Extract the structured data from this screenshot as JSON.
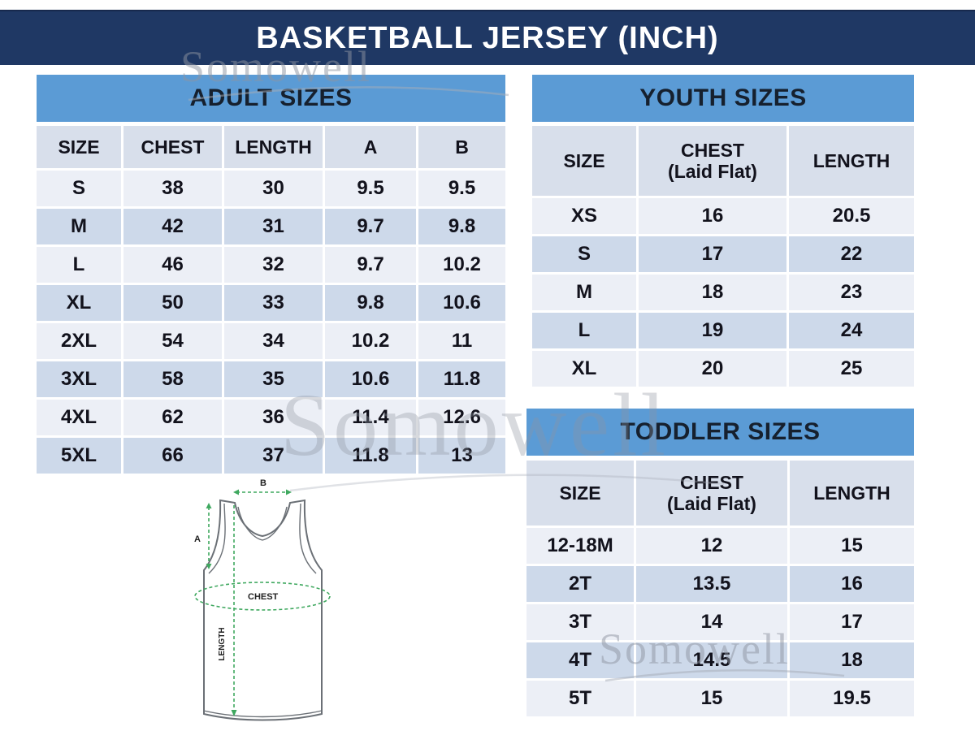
{
  "title": "BASKETBALL JERSEY (INCH)",
  "watermark": {
    "text": "Somowell"
  },
  "colors": {
    "top_banner_bg": "#1f3864",
    "top_banner_text": "#ffffff",
    "section_banner_bg": "#5b9bd5",
    "section_banner_text": "#16202e",
    "header_row_bg": "#d8dfeb",
    "row_light_bg": "#eceff6",
    "row_dark_bg": "#cdd9ea",
    "cell_text": "#12121c",
    "measure_green": "#3fa85f",
    "jersey_outline": "#6b7076",
    "watermark_gray": "#8f95a1"
  },
  "tables": {
    "adult": {
      "title": "ADULT SIZES",
      "columns": [
        "SIZE",
        "CHEST",
        "LENGTH",
        "A",
        "B"
      ],
      "rows": [
        [
          "S",
          "38",
          "30",
          "9.5",
          "9.5"
        ],
        [
          "M",
          "42",
          "31",
          "9.7",
          "9.8"
        ],
        [
          "L",
          "46",
          "32",
          "9.7",
          "10.2"
        ],
        [
          "XL",
          "50",
          "33",
          "9.8",
          "10.6"
        ],
        [
          "2XL",
          "54",
          "34",
          "10.2",
          "11"
        ],
        [
          "3XL",
          "58",
          "35",
          "10.6",
          "11.8"
        ],
        [
          "4XL",
          "62",
          "36",
          "11.4",
          "12.6"
        ],
        [
          "5XL",
          "66",
          "37",
          "11.8",
          "13"
        ]
      ]
    },
    "youth": {
      "title": "YOUTH SIZES",
      "columns": [
        "SIZE",
        "CHEST\n(Laid Flat)",
        "LENGTH"
      ],
      "rows": [
        [
          "XS",
          "16",
          "20.5"
        ],
        [
          "S",
          "17",
          "22"
        ],
        [
          "M",
          "18",
          "23"
        ],
        [
          "L",
          "19",
          "24"
        ],
        [
          "XL",
          "20",
          "25"
        ]
      ]
    },
    "toddler": {
      "title": "TODDLER SIZES",
      "columns": [
        "SIZE",
        "CHEST\n(Laid Flat)",
        "LENGTH"
      ],
      "rows": [
        [
          "12-18M",
          "12",
          "15"
        ],
        [
          "2T",
          "13.5",
          "16"
        ],
        [
          "3T",
          "14",
          "17"
        ],
        [
          "4T",
          "14.5",
          "18"
        ],
        [
          "5T",
          "15",
          "19.5"
        ]
      ]
    }
  },
  "diagram": {
    "a_label": "A",
    "b_label": "B",
    "chest_label": "CHEST",
    "length_label": "LENGTH"
  }
}
